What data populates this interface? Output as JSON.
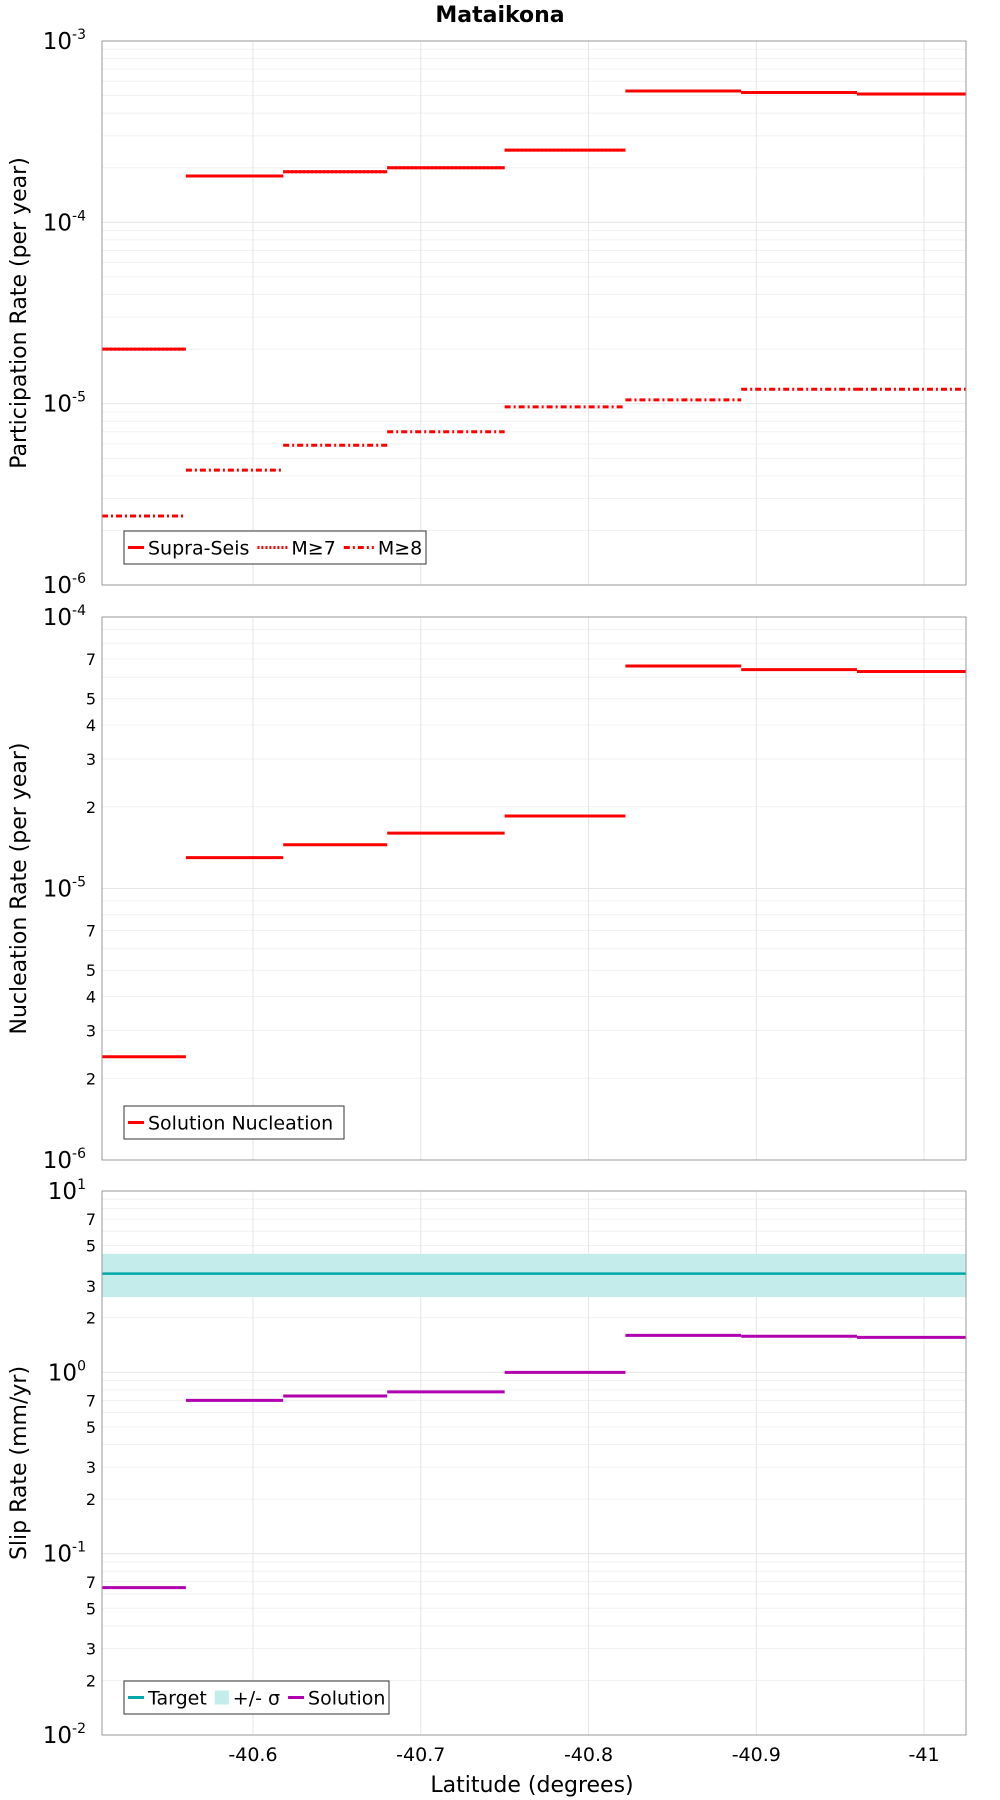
{
  "title": "Mataikona",
  "xlabel": "Latitude (degrees)",
  "x_ticks": [
    "-40.6",
    "-40.7",
    "-40.8",
    "-40.9",
    "-41"
  ],
  "chart_data": [
    {
      "type": "line",
      "step": true,
      "ylabel": "Participation Rate (per year)",
      "yscale": "log",
      "ylim": [
        1e-06,
        0.001
      ],
      "xlim": [
        -40.51,
        -41.025
      ],
      "legend_position": "bottom-left",
      "y_tick_labels": [
        {
          "base": "10",
          "exp": "-6"
        },
        {
          "base": "10",
          "exp": "-5"
        },
        {
          "base": "10",
          "exp": "-4"
        },
        {
          "base": "10",
          "exp": "-3"
        }
      ],
      "series": [
        {
          "name": "Supra-Seis",
          "color": "#ff0000",
          "dash": "solid",
          "segments": [
            [
              -40.51,
              -40.56,
              2e-05
            ],
            [
              -40.56,
              -40.618,
              0.00018
            ],
            [
              -40.618,
              -40.68,
              0.00019
            ],
            [
              -40.68,
              -40.75,
              0.0002
            ],
            [
              -40.75,
              -40.822,
              0.00025
            ],
            [
              -40.822,
              -40.891,
              0.00053
            ],
            [
              -40.891,
              -40.96,
              0.00052
            ],
            [
              -40.96,
              -41.025,
              0.00051
            ]
          ]
        },
        {
          "name": "M≥7",
          "color": "#ff0000",
          "dash": "dot",
          "segments": [
            [
              -40.51,
              -40.56,
              2e-05
            ],
            [
              -40.56,
              -40.618,
              0.00018
            ],
            [
              -40.618,
              -40.68,
              0.00019
            ],
            [
              -40.68,
              -40.75,
              0.0002
            ],
            [
              -40.75,
              -40.822,
              0.00025
            ],
            [
              -40.822,
              -40.891,
              0.00053
            ],
            [
              -40.891,
              -40.96,
              0.00052
            ],
            [
              -40.96,
              -41.025,
              0.00051
            ]
          ]
        },
        {
          "name": "M≥8",
          "color": "#ff0000",
          "dash": "dashdot",
          "segments": [
            [
              -40.51,
              -40.56,
              2.4e-06
            ],
            [
              -40.56,
              -40.618,
              4.3e-06
            ],
            [
              -40.618,
              -40.68,
              5.9e-06
            ],
            [
              -40.68,
              -40.75,
              7e-06
            ],
            [
              -40.75,
              -40.822,
              9.6e-06
            ],
            [
              -40.822,
              -40.891,
              1.05e-05
            ],
            [
              -40.891,
              -40.96,
              1.2e-05
            ],
            [
              -40.96,
              -41.025,
              1.2e-05
            ]
          ]
        }
      ]
    },
    {
      "type": "line",
      "step": true,
      "ylabel": "Nucleation Rate (per year)",
      "yscale": "log",
      "ylim": [
        1e-06,
        0.0001
      ],
      "xlim": [
        -40.51,
        -41.025
      ],
      "legend_position": "bottom-left",
      "y_tick_labels": [
        {
          "base": "10",
          "exp": "-6"
        },
        {
          "base": "10",
          "exp": "-5"
        },
        {
          "base": "10",
          "exp": "-4"
        }
      ],
      "minor_tick_labels": [
        "2",
        "3",
        "4",
        "5",
        "7"
      ],
      "series": [
        {
          "name": "Solution Nucleation",
          "color": "#ff0000",
          "dash": "solid",
          "segments": [
            [
              -40.51,
              -40.56,
              2.4e-06
            ],
            [
              -40.56,
              -40.618,
              1.3e-05
            ],
            [
              -40.618,
              -40.68,
              1.45e-05
            ],
            [
              -40.68,
              -40.75,
              1.6e-05
            ],
            [
              -40.75,
              -40.822,
              1.85e-05
            ],
            [
              -40.822,
              -40.891,
              6.6e-05
            ],
            [
              -40.891,
              -40.96,
              6.4e-05
            ],
            [
              -40.96,
              -41.025,
              6.3e-05
            ]
          ]
        }
      ]
    },
    {
      "type": "line",
      "step": true,
      "ylabel": "Slip Rate (mm/yr)",
      "yscale": "log",
      "ylim": [
        0.01,
        10
      ],
      "xlim": [
        -40.51,
        -41.025
      ],
      "legend_position": "bottom-left",
      "y_tick_labels": [
        {
          "base": "10",
          "exp": "-2"
        },
        {
          "base": "10",
          "exp": "-1"
        },
        {
          "base": "10",
          "exp": "0"
        },
        {
          "base": "10",
          "exp": "1"
        }
      ],
      "minor_tick_labels": [
        "2",
        "3",
        "5",
        "7"
      ],
      "target": {
        "name": "Target",
        "value": 3.5,
        "color": "#00a9a9"
      },
      "band": {
        "name": "+/- σ",
        "lower": 2.6,
        "upper": 4.5,
        "color": "#c3ecea"
      },
      "series": [
        {
          "name": "Solution",
          "color": "#b000b0",
          "dash": "solid",
          "segments": [
            [
              -40.51,
              -40.56,
              0.065
            ],
            [
              -40.56,
              -40.618,
              0.7
            ],
            [
              -40.618,
              -40.68,
              0.74
            ],
            [
              -40.68,
              -40.75,
              0.78
            ],
            [
              -40.75,
              -40.822,
              1.0
            ],
            [
              -40.822,
              -40.891,
              1.6
            ],
            [
              -40.891,
              -40.96,
              1.58
            ],
            [
              -40.96,
              -41.025,
              1.56
            ]
          ]
        }
      ]
    }
  ]
}
